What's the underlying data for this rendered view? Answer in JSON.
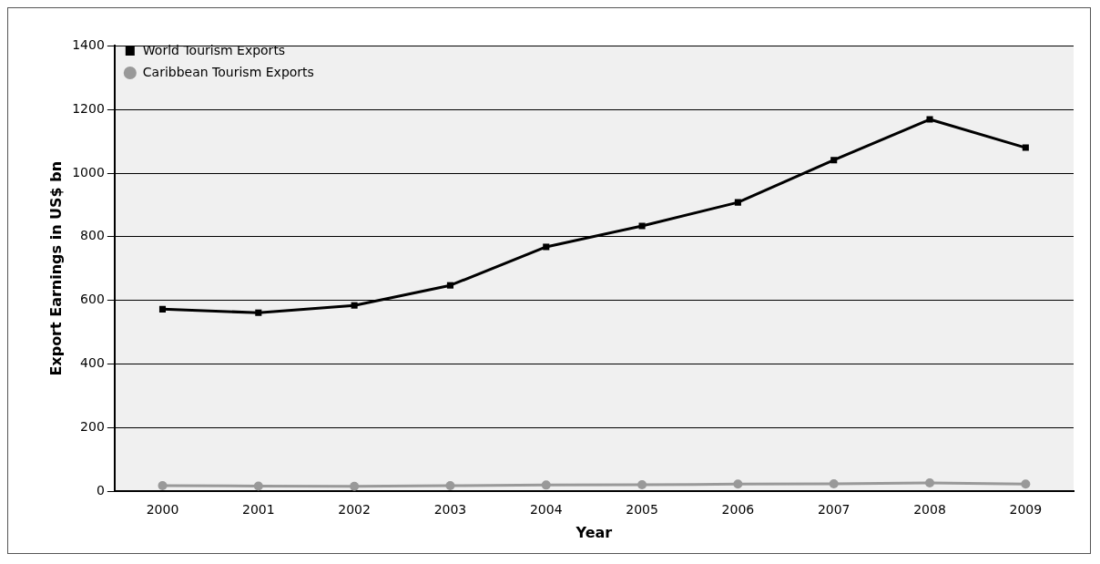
{
  "chart_data": {
    "type": "line",
    "xlabel": "Year",
    "ylabel": "Export Earnings in US$ bn",
    "categories": [
      "2000",
      "2001",
      "2002",
      "2003",
      "2004",
      "2005",
      "2006",
      "2007",
      "2008",
      "2009"
    ],
    "series": [
      {
        "name": "World Tourism Exports",
        "color": "#000000",
        "marker": "square",
        "values": [
          572,
          561,
          584,
          647,
          768,
          834,
          908,
          1041,
          1169,
          1080
        ]
      },
      {
        "name": "Caribbean Tourism Exports",
        "color": "#999999",
        "marker": "circle",
        "values": [
          17,
          16,
          15,
          17,
          19,
          20,
          22,
          23,
          26,
          22
        ]
      }
    ],
    "ylim": [
      0,
      1400
    ],
    "yticks": [
      0,
      200,
      400,
      600,
      800,
      1000,
      1200,
      1400
    ],
    "grid": "y",
    "legend": "top left",
    "line_style": "solid"
  }
}
